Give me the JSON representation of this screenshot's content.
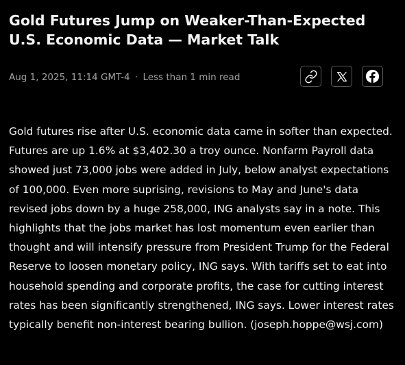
{
  "article": {
    "headline": "Gold Futures Jump on Weaker-Than-Expected U.S. Economic Data — Market Talk",
    "timestamp": "Aug 1, 2025, 11:14 GMT-4",
    "separator": "·",
    "read_time": "Less than 1 min read",
    "body": "Gold futures rise after U.S. economic data came in softer than expected. Futures are up 1.6% at $3,402.30 a troy ounce. Nonfarm Payroll data showed just 73,000 jobs were added in July, below analyst expectations of 100,000. Even more suprising, revisions to May and June's data revised jobs down by a huge 258,000, ING analysts say in a note. This highlights that the jobs market has lost momentum even earlier than thought and will intensify pressure from President Trump for the Federal Reserve to loosen monetary policy, ING says. With tariffs set to eat into household spending and corporate profits, the case for cutting interest rates has been significantly strengthened, ING says. Lower interest rates typically benefit non-interest bearing bullion. (joseph.hoppe@wsj.com)"
  },
  "share": {
    "buttons": [
      {
        "icon": "link-icon"
      },
      {
        "icon": "x-logo-icon"
      },
      {
        "icon": "facebook-icon"
      }
    ]
  },
  "colors": {
    "background": "#000000",
    "headline": "#f2f2f2",
    "meta": "#a0a0a0",
    "body": "#f0f0f0",
    "button_border": "#5c5c5c"
  }
}
